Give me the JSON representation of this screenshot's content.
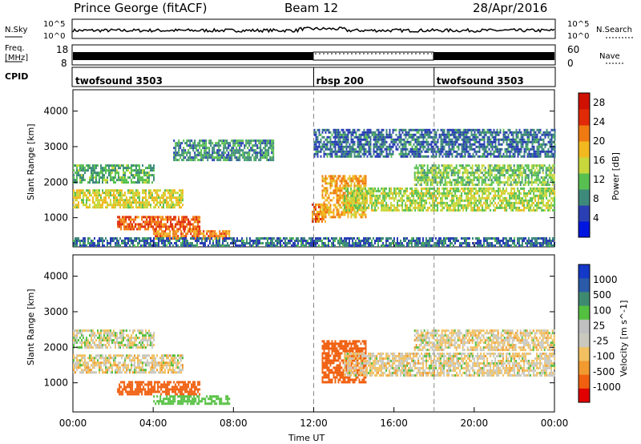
{
  "header": {
    "station": "Prince George (fitACF)",
    "beam": "Beam 12",
    "date": "28/Apr/2016"
  },
  "strip": {
    "nsky_label": "N.Sky",
    "nsky_top": "10^5",
    "nsky_bottom": "10^0",
    "nsearch_label": "N.Search",
    "nsearch_top": "10^5",
    "nsearch_bottom": "10^0",
    "freq_label": "Freq.",
    "freq_unit": "[MHz]",
    "freq_top": "18",
    "freq_bottom": "8",
    "nave_label": "Nave",
    "nave_top": "60",
    "nave_bottom": "0",
    "cpid_label": "CPID"
  },
  "cpid_segments": [
    {
      "name": "twofsound 3503",
      "start_hour": 0,
      "end_hour": 12
    },
    {
      "name": "rbsp 200",
      "start_hour": 12,
      "end_hour": 18
    },
    {
      "name": "twofsound 3503",
      "start_hour": 18,
      "end_hour": 24
    }
  ],
  "colors": {
    "power": [
      "#0016e0",
      "#2a3fb4",
      "#3e8a7a",
      "#58c050",
      "#c8d83c",
      "#f2b820",
      "#f07a12",
      "#e02a08",
      "#d01000"
    ],
    "velocity": [
      "#e00000",
      "#f06010",
      "#f09a30",
      "#f2c060",
      "#c9c9c0",
      "#c0c0c0",
      "#54c040",
      "#3e8a70",
      "#2a5aa8",
      "#1438c8"
    ]
  },
  "chart_data": [
    {
      "type": "heatmap",
      "title": "Power",
      "xlabel": "Time UT",
      "ylabel": "Slant Range [km]",
      "x_ticks": [
        "00:00",
        "04:00",
        "08:00",
        "12:00",
        "16:00",
        "20:00",
        "00:00"
      ],
      "xlim_hours": [
        0,
        24
      ],
      "y_ticks": [
        "1000",
        "2000",
        "3000",
        "4000"
      ],
      "ylim_km": [
        180,
        4600
      ],
      "colorbar_label": "Power [dB]",
      "colorbar_ticks": [
        "4",
        "8",
        "12",
        "16",
        "20",
        "24",
        "28"
      ],
      "colorbar_range": [
        0,
        30
      ],
      "regions": [
        {
          "t0": 0.0,
          "t1": 5.5,
          "r0": 1300,
          "r1": 1800,
          "level": 16
        },
        {
          "t0": 0.0,
          "t1": 4.0,
          "r0": 2000,
          "r1": 2500,
          "level": 10
        },
        {
          "t0": 2.2,
          "t1": 6.3,
          "r0": 700,
          "r1": 1050,
          "level": 24
        },
        {
          "t0": 4.0,
          "t1": 7.8,
          "r0": 380,
          "r1": 650,
          "level": 22
        },
        {
          "t0": 0.0,
          "t1": 24.0,
          "r0": 180,
          "r1": 450,
          "level": 6
        },
        {
          "t0": 11.9,
          "t1": 12.6,
          "r0": 900,
          "r1": 1400,
          "level": 22
        },
        {
          "t0": 12.4,
          "t1": 14.6,
          "r0": 1000,
          "r1": 2200,
          "level": 20
        },
        {
          "t0": 13.5,
          "t1": 24.0,
          "r0": 1200,
          "r1": 1850,
          "level": 14
        },
        {
          "t0": 17.0,
          "t1": 24.0,
          "r0": 1900,
          "r1": 2500,
          "level": 12
        },
        {
          "t0": 5.0,
          "t1": 10.0,
          "r0": 2600,
          "r1": 3200,
          "level": 8
        },
        {
          "t0": 12.0,
          "t1": 24.0,
          "r0": 2700,
          "r1": 3500,
          "level": 6
        }
      ]
    },
    {
      "type": "heatmap",
      "title": "Velocity",
      "xlabel": "Time UT",
      "ylabel": "Slant Range [km]",
      "x_ticks": [
        "00:00",
        "04:00",
        "08:00",
        "12:00",
        "16:00",
        "20:00",
        "00:00"
      ],
      "xlim_hours": [
        0,
        24
      ],
      "y_ticks": [
        "1000",
        "2000",
        "3000",
        "4000"
      ],
      "ylim_km": [
        180,
        4600
      ],
      "colorbar_label": "Velocity [m s^-1]",
      "colorbar_ticks": [
        "1000",
        "500",
        "100",
        "25",
        "-25",
        "-100",
        "-500",
        "-1000"
      ],
      "regions": [
        {
          "t0": 0.0,
          "t1": 5.5,
          "r0": 1300,
          "r1": 1800,
          "velocity": 0
        },
        {
          "t0": 0.0,
          "t1": 4.0,
          "r0": 2000,
          "r1": 2500,
          "velocity": 10
        },
        {
          "t0": 2.2,
          "t1": 6.3,
          "r0": 700,
          "r1": 1050,
          "velocity": -150
        },
        {
          "t0": 4.0,
          "t1": 7.8,
          "r0": 380,
          "r1": 650,
          "velocity": 60
        },
        {
          "t0": 12.4,
          "t1": 14.6,
          "r0": 1000,
          "r1": 2200,
          "velocity": -300
        },
        {
          "t0": 13.5,
          "t1": 24.0,
          "r0": 1200,
          "r1": 1850,
          "velocity": 0
        },
        {
          "t0": 17.0,
          "t1": 24.0,
          "r0": 1900,
          "r1": 2500,
          "velocity": 0
        }
      ]
    }
  ]
}
